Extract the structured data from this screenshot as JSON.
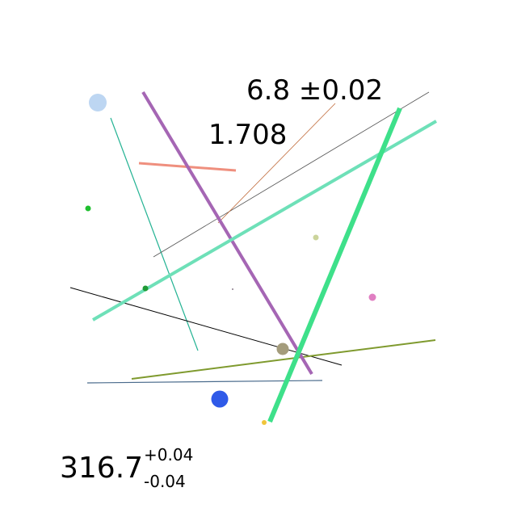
{
  "labels": {
    "value_a": "6.8 ±0.02",
    "value_b": "1.708",
    "value_c": "316.7",
    "value_c_plus": "+0.04",
    "value_c_minus": "-0.04"
  },
  "colors": {
    "thick_green": "#3ee08a",
    "aqua": "#6ee0b8",
    "purple": "#a566b4",
    "salmon": "#ef8f7e",
    "olive": "#7f9a2e",
    "teal": "#25b394",
    "grey": "#555555",
    "orange_brown": "#c06a3a",
    "black": "#000000",
    "steel": "#4a6b8c",
    "light_blue": "#bdd6f2",
    "blue": "#2f5ae8",
    "tan": "#a49c7c",
    "green": "#1fbf2f",
    "dark_green": "#1f9a36",
    "pale_olive": "#cbd49b",
    "pink": "#e07fc2",
    "yellow": "#f0c53a"
  }
}
